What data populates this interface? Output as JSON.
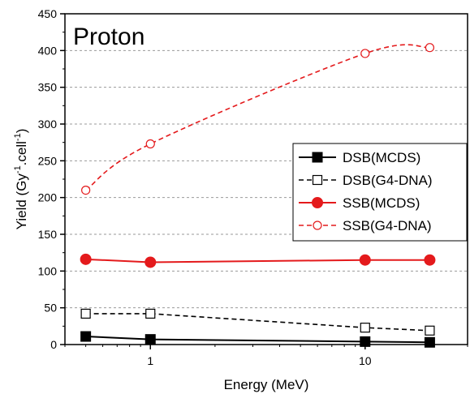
{
  "chart_data": {
    "type": "line",
    "title": "Proton",
    "xlabel": "Energy (MeV)",
    "ylabel": {
      "pre": "Yield (Gy",
      "sup1": "-1",
      "mid": ".cell",
      "sup2": "-1",
      "post": ")"
    },
    "x_scale": "log",
    "xlim": [
      0.4,
      30
    ],
    "ylim": [
      0,
      450
    ],
    "x_ticks": [
      {
        "value": 1,
        "label": "1"
      },
      {
        "value": 10,
        "label": "10"
      }
    ],
    "y_ticks": [
      0,
      50,
      100,
      150,
      200,
      250,
      300,
      350,
      400,
      450
    ],
    "grid": "horizontal dashed",
    "legend_position": "right",
    "series": [
      {
        "name": "DSB(MCDS)",
        "color": "#000000",
        "line": "solid",
        "marker": "filled-square",
        "x": [
          0.5,
          1,
          10,
          20
        ],
        "y": [
          11,
          7,
          4,
          3
        ]
      },
      {
        "name": "DSB(G4-DNA)",
        "color": "#000000",
        "line": "dashed",
        "marker": "open-square",
        "x": [
          0.5,
          1,
          10,
          20
        ],
        "y": [
          42,
          42,
          23,
          19
        ]
      },
      {
        "name": "SSB(MCDS)",
        "color": "#e41a1c",
        "line": "solid",
        "marker": "filled-circle",
        "x": [
          0.5,
          1,
          10,
          20
        ],
        "y": [
          116,
          112,
          115,
          115
        ]
      },
      {
        "name": "SSB(G4-DNA)",
        "color": "#e41a1c",
        "line": "dashed",
        "marker": "open-circle",
        "smooth": true,
        "x": [
          0.5,
          1,
          10,
          20
        ],
        "y": [
          210,
          273,
          396,
          404
        ]
      }
    ]
  }
}
